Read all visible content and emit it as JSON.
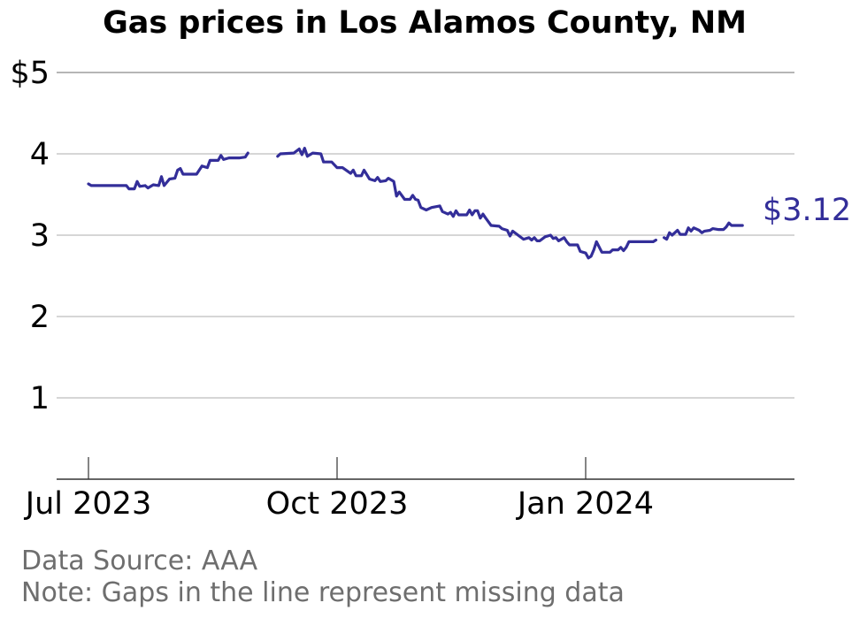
{
  "chart_data": {
    "type": "line",
    "title": "Gas prices in Los Alamos County, NM",
    "xlabel": "",
    "ylabel": "",
    "ylim": [
      0,
      5
    ],
    "xlim": [
      "2023-07-01",
      "2024-03-17"
    ],
    "y_ticks": [
      {
        "value": 1,
        "label": "1"
      },
      {
        "value": 2,
        "label": "2"
      },
      {
        "value": 3,
        "label": "3"
      },
      {
        "value": 4,
        "label": "4"
      },
      {
        "value": 5,
        "label": "$5"
      }
    ],
    "x_ticks": [
      {
        "date": "2023-07-01",
        "label": "Jul 2023"
      },
      {
        "date": "2023-10-01",
        "label": "Oct 2023"
      },
      {
        "date": "2024-01-01",
        "label": "Jan 2024"
      }
    ],
    "grid": true,
    "line_color": "#332e99",
    "end_label": "$3.12",
    "series": [
      {
        "segments": [
          [
            [
              "2023-07-01",
              3.63
            ],
            [
              "2023-07-02",
              3.61
            ],
            [
              "2023-07-07",
              3.61
            ],
            [
              "2023-07-12",
              3.61
            ],
            [
              "2023-07-15",
              3.61
            ],
            [
              "2023-07-16",
              3.57
            ],
            [
              "2023-07-18",
              3.57
            ],
            [
              "2023-07-19",
              3.66
            ],
            [
              "2023-07-20",
              3.6
            ],
            [
              "2023-07-22",
              3.61
            ],
            [
              "2023-07-23",
              3.58
            ],
            [
              "2023-07-25",
              3.62
            ],
            [
              "2023-07-27",
              3.61
            ],
            [
              "2023-07-28",
              3.72
            ],
            [
              "2023-07-29",
              3.61
            ],
            [
              "2023-07-31",
              3.69
            ],
            [
              "2023-08-02",
              3.7
            ],
            [
              "2023-08-03",
              3.8
            ],
            [
              "2023-08-04",
              3.82
            ],
            [
              "2023-08-05",
              3.75
            ],
            [
              "2023-08-10",
              3.75
            ],
            [
              "2023-08-12",
              3.85
            ],
            [
              "2023-08-14",
              3.83
            ],
            [
              "2023-08-15",
              3.92
            ],
            [
              "2023-08-18",
              3.92
            ],
            [
              "2023-08-19",
              3.98
            ],
            [
              "2023-08-20",
              3.93
            ],
            [
              "2023-08-22",
              3.95
            ],
            [
              "2023-08-26",
              3.95
            ],
            [
              "2023-08-28",
              3.96
            ],
            [
              "2023-08-29",
              4.01
            ]
          ],
          [
            [
              "2023-09-09",
              3.97
            ],
            [
              "2023-09-10",
              4.0
            ],
            [
              "2023-09-15",
              4.01
            ],
            [
              "2023-09-17",
              4.06
            ],
            [
              "2023-09-18",
              3.99
            ],
            [
              "2023-09-19",
              4.07
            ],
            [
              "2023-09-20",
              3.97
            ],
            [
              "2023-09-22",
              4.01
            ],
            [
              "2023-09-25",
              4.0
            ],
            [
              "2023-09-26",
              3.9
            ],
            [
              "2023-09-29",
              3.9
            ],
            [
              "2023-10-01",
              3.83
            ],
            [
              "2023-10-03",
              3.83
            ],
            [
              "2023-10-06",
              3.76
            ],
            [
              "2023-10-07",
              3.8
            ],
            [
              "2023-10-08",
              3.73
            ],
            [
              "2023-10-10",
              3.73
            ],
            [
              "2023-10-11",
              3.8
            ],
            [
              "2023-10-13",
              3.69
            ],
            [
              "2023-10-15",
              3.67
            ],
            [
              "2023-10-16",
              3.71
            ],
            [
              "2023-10-17",
              3.66
            ],
            [
              "2023-10-19",
              3.67
            ],
            [
              "2023-10-20",
              3.7
            ],
            [
              "2023-10-22",
              3.66
            ],
            [
              "2023-10-23",
              3.48
            ],
            [
              "2023-10-24",
              3.53
            ],
            [
              "2023-10-26",
              3.44
            ],
            [
              "2023-10-28",
              3.44
            ],
            [
              "2023-10-29",
              3.49
            ],
            [
              "2023-10-30",
              3.44
            ],
            [
              "2023-10-31",
              3.43
            ],
            [
              "2023-11-01",
              3.34
            ],
            [
              "2023-11-03",
              3.31
            ],
            [
              "2023-11-05",
              3.34
            ],
            [
              "2023-11-08",
              3.36
            ],
            [
              "2023-11-09",
              3.29
            ],
            [
              "2023-11-11",
              3.26
            ],
            [
              "2023-11-12",
              3.28
            ],
            [
              "2023-11-13",
              3.23
            ],
            [
              "2023-11-14",
              3.3
            ],
            [
              "2023-11-15",
              3.25
            ],
            [
              "2023-11-18",
              3.25
            ],
            [
              "2023-11-19",
              3.31
            ],
            [
              "2023-11-20",
              3.25
            ],
            [
              "2023-11-21",
              3.3
            ],
            [
              "2023-11-22",
              3.3
            ],
            [
              "2023-11-23",
              3.21
            ],
            [
              "2023-11-24",
              3.26
            ],
            [
              "2023-11-25",
              3.21
            ],
            [
              "2023-11-27",
              3.12
            ],
            [
              "2023-11-30",
              3.11
            ],
            [
              "2023-12-01",
              3.08
            ],
            [
              "2023-12-03",
              3.06
            ],
            [
              "2023-12-04",
              2.99
            ],
            [
              "2023-12-05",
              3.05
            ],
            [
              "2023-12-07",
              3.0
            ],
            [
              "2023-12-09",
              2.95
            ],
            [
              "2023-12-11",
              2.97
            ],
            [
              "2023-12-12",
              2.94
            ],
            [
              "2023-12-13",
              2.97
            ],
            [
              "2023-12-14",
              2.93
            ],
            [
              "2023-12-15",
              2.93
            ],
            [
              "2023-12-17",
              2.98
            ],
            [
              "2023-12-19",
              3.0
            ],
            [
              "2023-12-20",
              2.96
            ],
            [
              "2023-12-21",
              2.97
            ],
            [
              "2023-12-22",
              2.93
            ],
            [
              "2023-12-24",
              2.97
            ],
            [
              "2023-12-25",
              2.92
            ],
            [
              "2023-12-26",
              2.88
            ],
            [
              "2023-12-29",
              2.88
            ],
            [
              "2023-12-30",
              2.8
            ],
            [
              "2024-01-01",
              2.78
            ],
            [
              "2024-01-02",
              2.72
            ],
            [
              "2024-01-03",
              2.74
            ],
            [
              "2024-01-04",
              2.82
            ],
            [
              "2024-01-05",
              2.92
            ],
            [
              "2024-01-07",
              2.79
            ],
            [
              "2024-01-09",
              2.79
            ],
            [
              "2024-01-10",
              2.79
            ],
            [
              "2024-01-11",
              2.82
            ],
            [
              "2024-01-13",
              2.82
            ],
            [
              "2024-01-14",
              2.85
            ],
            [
              "2024-01-15",
              2.81
            ],
            [
              "2024-01-16",
              2.85
            ],
            [
              "2024-01-17",
              2.92
            ],
            [
              "2024-01-20",
              2.92
            ],
            [
              "2024-01-26",
              2.92
            ],
            [
              "2024-01-27",
              2.94
            ]
          ],
          [
            [
              "2024-01-30",
              2.97
            ],
            [
              "2024-01-31",
              2.95
            ],
            [
              "2024-02-01",
              3.03
            ],
            [
              "2024-02-02",
              3.0
            ],
            [
              "2024-02-04",
              3.06
            ],
            [
              "2024-02-05",
              3.01
            ],
            [
              "2024-02-07",
              3.01
            ],
            [
              "2024-02-08",
              3.09
            ],
            [
              "2024-02-09",
              3.05
            ],
            [
              "2024-02-10",
              3.09
            ],
            [
              "2024-02-12",
              3.06
            ],
            [
              "2024-02-13",
              3.03
            ],
            [
              "2024-02-14",
              3.05
            ],
            [
              "2024-02-16",
              3.06
            ],
            [
              "2024-02-17",
              3.08
            ],
            [
              "2024-02-19",
              3.07
            ],
            [
              "2024-02-21",
              3.07
            ],
            [
              "2024-02-22",
              3.1
            ],
            [
              "2024-02-23",
              3.15
            ],
            [
              "2024-02-24",
              3.12
            ],
            [
              "2024-02-28",
              3.12
            ]
          ]
        ]
      }
    ]
  },
  "footer": {
    "source": "Data Source: AAA",
    "note": "Note: Gaps in the line represent missing data"
  }
}
